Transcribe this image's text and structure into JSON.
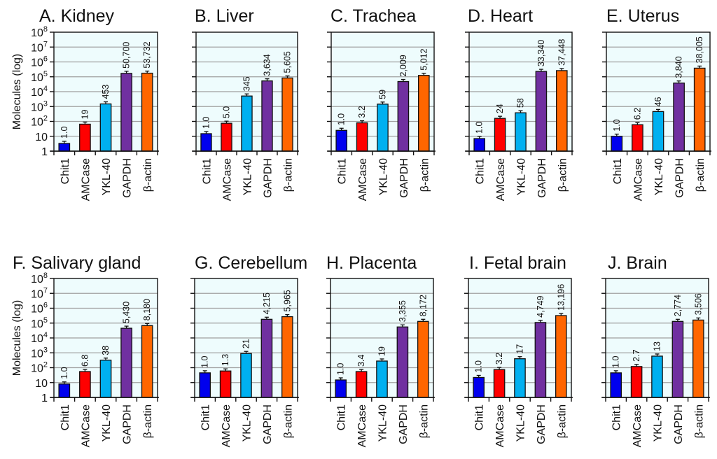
{
  "chart_data": [
    {
      "type": "bar",
      "panel": "A",
      "title": "A. Kidney",
      "categories": [
        "Chit1",
        "AMCase",
        "YKL-40",
        "GAPDH",
        "β-actin"
      ],
      "values": [
        3.3,
        65,
        1500,
        170000,
        175000
      ],
      "data_labels": [
        "1.0",
        "19",
        "453",
        "50,700",
        "53,732"
      ],
      "ylabel": "Molecules (log)",
      "yscale": "log",
      "ylim": [
        1,
        100000000
      ],
      "show_yticklabels": true
    },
    {
      "type": "bar",
      "panel": "B",
      "title": "B. Liver",
      "categories": [
        "Chit1",
        "AMCase",
        "YKL-40",
        "GAPDH",
        "β-actin"
      ],
      "values": [
        15,
        75,
        5100,
        53000,
        83000
      ],
      "data_labels": [
        "1.0",
        "5.0",
        "345",
        "3,634",
        "5,605"
      ],
      "ylabel": "",
      "yscale": "log",
      "ylim": [
        1,
        100000000
      ],
      "show_yticklabels": false
    },
    {
      "type": "bar",
      "panel": "C",
      "title": "C. Trachea",
      "categories": [
        "Chit1",
        "AMCase",
        "YKL-40",
        "GAPDH",
        "β-actin"
      ],
      "values": [
        25,
        80,
        1450,
        48000,
        125000
      ],
      "data_labels": [
        "1.0",
        "3.2",
        "59",
        "2,009",
        "5,012"
      ],
      "ylabel": "",
      "yscale": "log",
      "ylim": [
        1,
        100000000
      ],
      "show_yticklabels": false
    },
    {
      "type": "bar",
      "panel": "D",
      "title": "D. Heart",
      "categories": [
        "Chit1",
        "AMCase",
        "YKL-40",
        "GAPDH",
        "β-actin"
      ],
      "values": [
        7,
        160,
        380,
        230000,
        260000
      ],
      "data_labels": [
        "1.0",
        "24",
        "58",
        "33,340",
        "37,448"
      ],
      "ylabel": "",
      "yscale": "log",
      "ylim": [
        1,
        100000000
      ],
      "show_yticklabels": false
    },
    {
      "type": "bar",
      "panel": "E",
      "title": "E. Uterus",
      "categories": [
        "Chit1",
        "AMCase",
        "YKL-40",
        "GAPDH",
        "β-actin"
      ],
      "values": [
        10,
        60,
        460,
        38000,
        380000
      ],
      "data_labels": [
        "1.0",
        "6.2",
        "46",
        "3,840",
        "38,005"
      ],
      "ylabel": "",
      "yscale": "log",
      "ylim": [
        1,
        100000000
      ],
      "show_yticklabels": false
    },
    {
      "type": "bar",
      "panel": "F",
      "title": "F. Salivary gland",
      "categories": [
        "Chit1",
        "AMCase",
        "YKL-40",
        "GAPDH",
        "β-actin"
      ],
      "values": [
        8,
        55,
        320,
        45000,
        68000
      ],
      "data_labels": [
        "1.0",
        "6.8",
        "38",
        "5,430",
        "8,180"
      ],
      "ylabel": "Molecules (log)",
      "yscale": "log",
      "ylim": [
        1,
        100000000
      ],
      "show_yticklabels": true
    },
    {
      "type": "bar",
      "panel": "G",
      "title": "G. Cerebellum",
      "categories": [
        "Chit1",
        "AMCase",
        "YKL-40",
        "GAPDH",
        "β-actin"
      ],
      "values": [
        45,
        60,
        900,
        180000,
        270000
      ],
      "data_labels": [
        "1.0",
        "1.3",
        "21",
        "4,215",
        "5,965"
      ],
      "ylabel": "",
      "yscale": "log",
      "ylim": [
        1,
        100000000
      ],
      "show_yticklabels": false
    },
    {
      "type": "bar",
      "panel": "H",
      "title": "H. Placenta",
      "categories": [
        "Chit1",
        "AMCase",
        "YKL-40",
        "GAPDH",
        "β-actin"
      ],
      "values": [
        15,
        55,
        280,
        55000,
        130000
      ],
      "data_labels": [
        "1.0",
        "3.4",
        "19",
        "3,355",
        "8,172"
      ],
      "ylabel": "",
      "yscale": "log",
      "ylim": [
        1,
        100000000
      ],
      "show_yticklabels": false
    },
    {
      "type": "bar",
      "panel": "I",
      "title": "I. Fetal brain",
      "categories": [
        "Chit1",
        "AMCase",
        "YKL-40",
        "GAPDH",
        "β-actin"
      ],
      "values": [
        22,
        75,
        400,
        110000,
        320000
      ],
      "data_labels": [
        "1.0",
        "3.2",
        "17",
        "4,749",
        "13,196"
      ],
      "ylabel": "",
      "yscale": "log",
      "ylim": [
        1,
        100000000
      ],
      "show_yticklabels": false
    },
    {
      "type": "bar",
      "panel": "J",
      "title": "J. Brain",
      "categories": [
        "Chit1",
        "AMCase",
        "YKL-40",
        "GAPDH",
        "β-actin"
      ],
      "values": [
        45,
        120,
        600,
        130000,
        160000
      ],
      "data_labels": [
        "1.0",
        "2.7",
        "13",
        "2,774",
        "3,506"
      ],
      "ylabel": "",
      "yscale": "log",
      "ylim": [
        1,
        100000000
      ],
      "show_yticklabels": false
    }
  ],
  "axis": {
    "ytick_labels": [
      {
        "base": "1",
        "exp": ""
      },
      {
        "base": "10",
        "exp": ""
      },
      {
        "base": "10",
        "exp": "2"
      },
      {
        "base": "10",
        "exp": "3"
      },
      {
        "base": "10",
        "exp": "4"
      },
      {
        "base": "10",
        "exp": "5"
      },
      {
        "base": "10",
        "exp": "6"
      },
      {
        "base": "10",
        "exp": "7"
      },
      {
        "base": "10",
        "exp": "8"
      }
    ],
    "grid": true
  },
  "colors": {
    "bars": [
      "#0000ee",
      "#ff0000",
      "#00b0f0",
      "#7030a0",
      "#ff6600"
    ],
    "plot_background": "#eefcfd",
    "gridline": "#a0a0a0",
    "frame": "#111111"
  }
}
